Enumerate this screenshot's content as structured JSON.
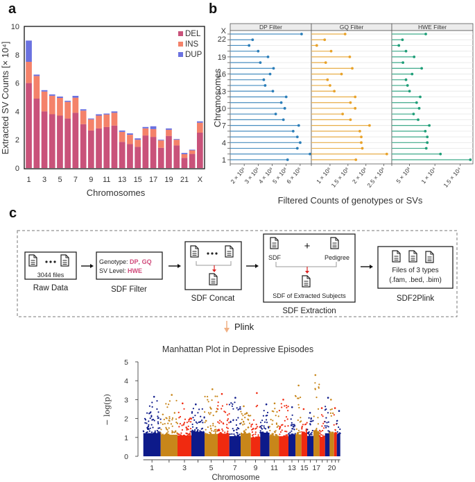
{
  "panels": {
    "a": "a",
    "b": "b",
    "c": "c"
  },
  "chart_data": [
    {
      "id": "a",
      "type": "bar",
      "stacked": true,
      "title": "",
      "xlabel": "Chromosomes",
      "ylabel": "Extracted SV Counts [× 10⁴]",
      "ylim": [
        0,
        10
      ],
      "yticks": [
        "0",
        "2",
        "4",
        "6",
        "8",
        "10"
      ],
      "categories": [
        "1",
        "2",
        "3",
        "4",
        "5",
        "6",
        "7",
        "8",
        "9",
        "10",
        "11",
        "12",
        "13",
        "14",
        "15",
        "16",
        "17",
        "18",
        "19",
        "20",
        "21",
        "22",
        "X"
      ],
      "xtick_labels": [
        "1",
        "",
        "3",
        "",
        "5",
        "",
        "7",
        "",
        "9",
        "",
        "11",
        "",
        "13",
        "",
        "15",
        "",
        "17",
        "",
        "19",
        "",
        "21",
        "",
        "X"
      ],
      "legend": {
        "placement": "top-right",
        "entries": [
          "DEL",
          "INS",
          "DUP"
        ]
      },
      "colors": {
        "DEL": "#c9527a",
        "INS": "#f4826a",
        "DUP": "#6b72e0"
      },
      "series": [
        {
          "name": "DEL",
          "values": [
            6.0,
            4.9,
            4.0,
            3.8,
            3.7,
            3.5,
            3.9,
            3.1,
            2.65,
            2.8,
            2.9,
            3.0,
            1.85,
            1.7,
            1.5,
            2.3,
            2.2,
            1.43,
            2.27,
            1.6,
            0.72,
            1.0,
            2.5
          ]
        },
        {
          "name": "INS",
          "values": [
            1.5,
            1.6,
            1.4,
            1.3,
            1.25,
            1.17,
            1.07,
            0.95,
            0.79,
            0.9,
            0.88,
            0.9,
            0.7,
            0.65,
            0.5,
            0.5,
            0.55,
            0.52,
            0.43,
            0.4,
            0.26,
            0.25,
            0.7
          ]
        },
        {
          "name": "DUP",
          "values": [
            1.5,
            0.1,
            0.1,
            0.1,
            0.1,
            0.08,
            0.13,
            0.1,
            0.06,
            0.1,
            0.07,
            0.1,
            0.1,
            0.1,
            0.1,
            0.1,
            0.2,
            0.05,
            0.1,
            0.05,
            0.09,
            0.05,
            0.1
          ]
        }
      ]
    },
    {
      "id": "b",
      "type": "scatter",
      "subtype": "lollipop",
      "xlabel": "Filtered Counts of genotypes or SVs",
      "ylabel": "Chromosomes",
      "categories": [
        "1",
        "2",
        "3",
        "4",
        "5",
        "6",
        "7",
        "8",
        "9",
        "10",
        "11",
        "12",
        "13",
        "14",
        "15",
        "16",
        "17",
        "18",
        "19",
        "20",
        "21",
        "22",
        "X"
      ],
      "ytick_labels": [
        "1",
        "4",
        "7",
        "10",
        "13",
        "16",
        "19",
        "22",
        "X"
      ],
      "facets": [
        {
          "name": "DP Filter",
          "color": "#2a7db8",
          "xlim": [
            100000000,
            680000000
          ],
          "xticks": [
            {
              "value": 200000000,
              "label": "2 × 10⁸"
            },
            {
              "value": 300000000,
              "label": "3 × 10⁸"
            },
            {
              "value": 400000000,
              "label": "4 × 10⁸"
            },
            {
              "value": 500000000,
              "label": "5 × 10⁸"
            },
            {
              "value": 600000000,
              "label": "6 × 10⁸"
            }
          ],
          "values": [
            510000000,
            720000000,
            580000000,
            600000000,
            580000000,
            550000000,
            590000000,
            480000000,
            425000000,
            490000000,
            465000000,
            500000000,
            405000000,
            350000000,
            340000000,
            385000000,
            410000000,
            315000000,
            370000000,
            300000000,
            235000000,
            260000000,
            610000000
          ]
        },
        {
          "name": "GQ Filter",
          "color": "#e8a22a",
          "xlim": [
            48000000,
            272000000
          ],
          "xticks": [
            {
              "value": 100000000,
              "label": "1 × 10⁸"
            },
            {
              "value": 150000000,
              "label": "1.5 × 10⁸"
            },
            {
              "value": 200000000,
              "label": "2 × 10⁸"
            },
            {
              "value": 250000000,
              "label": "2.5 × 10⁸"
            }
          ],
          "values": [
            172000000,
            258000000,
            190000000,
            187000000,
            187000000,
            183000000,
            210000000,
            157000000,
            135000000,
            170000000,
            157000000,
            170000000,
            112000000,
            100000000,
            93000000,
            132000000,
            162000000,
            88000000,
            155000000,
            103000000,
            63000000,
            85000000,
            142000000
          ]
        },
        {
          "name": "HWE Filter",
          "color": "#1f9e78",
          "xlim": [
            1500,
            17500
          ],
          "xticks": [
            {
              "value": 5000,
              "label": "5 × 10³"
            },
            {
              "value": 10000,
              "label": "1 × 10⁴"
            },
            {
              "value": 15000,
              "label": "1.5 × 10⁴"
            }
          ],
          "values": [
            17000,
            11100,
            8300,
            8500,
            8500,
            8100,
            8900,
            6700,
            5800,
            6900,
            6400,
            7100,
            5000,
            4600,
            4300,
            5500,
            7400,
            3700,
            5900,
            4300,
            2900,
            3600,
            8200
          ]
        }
      ]
    },
    {
      "id": "c-manhattan",
      "type": "scatter",
      "subtype": "manhattan",
      "title": "Manhattan Plot in Depressive Episodes",
      "xlabel": "Chromosome",
      "ylabel": "− log(p)",
      "ylim": [
        0,
        5
      ],
      "yticks": [
        "0",
        "1",
        "2",
        "3",
        "4",
        "5"
      ],
      "xtick_labels": [
        "1",
        "3",
        "5",
        "7",
        "9",
        "11",
        "13",
        "15",
        "17",
        "20"
      ],
      "chromosomes": [
        "1",
        "2",
        "3",
        "4",
        "5",
        "6",
        "7",
        "8",
        "9",
        "10",
        "11",
        "12",
        "13",
        "14",
        "15",
        "16",
        "17",
        "18",
        "19",
        "20",
        "21",
        "22"
      ],
      "colors": [
        "#0d1a8a",
        "#c8861a",
        "#f02a10"
      ],
      "peak_per_chromosome": [
        3.15,
        3.25,
        2.8,
        2.75,
        3.55,
        3.3,
        3.1,
        2.65,
        3.35,
        2.75,
        2.8,
        3.0,
        2.6,
        3.75,
        2.5,
        2.3,
        4.3,
        2.55,
        3.1,
        3.0,
        2.55,
        2.4
      ]
    }
  ],
  "workflow": {
    "steps": [
      {
        "label": "Raw Data",
        "caption": "3044 files"
      },
      {
        "label": "SDF Filter",
        "line1_prefix": "Genotype: ",
        "line1_hl1": "DP",
        "line1_sep": ", ",
        "line1_hl2": "GQ",
        "line2_prefix": "SV Level: ",
        "line2_hl": "HWE"
      },
      {
        "label": "SDF Concat"
      },
      {
        "label": "SDF Extraction",
        "left": "SDF",
        "plus": "+",
        "right": "Pedigree",
        "result": "SDF of Extracted Subjects"
      },
      {
        "label": "SDF2Plink",
        "line1": "Files of 3 types",
        "line2": "(.fam, .bed, .bim)"
      }
    ],
    "plink_label": "Plink",
    "highlight_color": "#d0497a"
  }
}
